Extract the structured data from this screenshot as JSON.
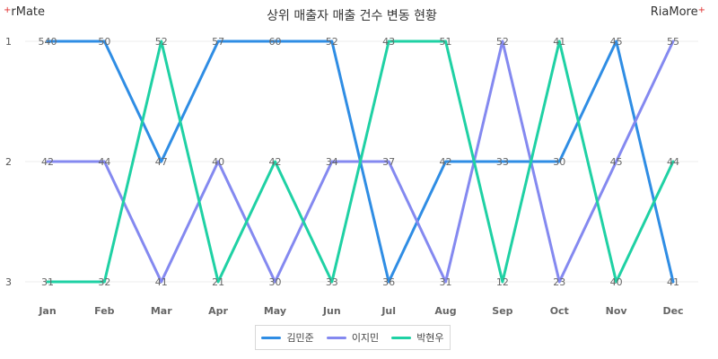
{
  "header": {
    "left_logo": "rMate",
    "right_logo": "RiaMore",
    "title": "상위 매출자 매출 건수 변동 현황"
  },
  "legend": [
    {
      "label": "김민준",
      "color": "#2f8de4"
    },
    {
      "label": "이지민",
      "color": "#8489f0"
    },
    {
      "label": "박현우",
      "color": "#1fd1a4"
    }
  ],
  "chart_data": {
    "type": "line",
    "title": "상위 매출자 매출 건수 변동 현황",
    "categories": [
      "Jan",
      "Feb",
      "Mar",
      "Apr",
      "May",
      "Jun",
      "Jul",
      "Aug",
      "Sep",
      "Oct",
      "Nov",
      "Dec"
    ],
    "y_ticks": [
      "1",
      "2",
      "3"
    ],
    "ylim": [
      1,
      3
    ],
    "y_inverted": true,
    "grid": true,
    "legend_position": "bottom",
    "series": [
      {
        "name": "김민준",
        "color": "#2f8de4",
        "ranks": [
          1,
          1,
          2,
          1,
          1,
          1,
          3,
          2,
          2,
          2,
          1,
          3
        ],
        "labels": [
          "540",
          "50",
          "47",
          "57",
          "60",
          "52",
          "36",
          "42",
          "33",
          "30",
          "45",
          "41"
        ]
      },
      {
        "name": "이지민",
        "color": "#8489f0",
        "ranks": [
          2,
          2,
          3,
          2,
          3,
          2,
          2,
          3,
          1,
          3,
          2,
          1
        ],
        "labels": [
          "42",
          "44",
          "41",
          "40",
          "30",
          "34",
          "37",
          "31",
          "52",
          "23",
          "45",
          "55"
        ]
      },
      {
        "name": "박현우",
        "color": "#1fd1a4",
        "ranks": [
          3,
          3,
          1,
          3,
          2,
          3,
          1,
          1,
          3,
          1,
          3,
          2
        ],
        "labels": [
          "31",
          "32",
          "52",
          "21",
          "42",
          "33",
          "43",
          "51",
          "12",
          "41",
          "40",
          "44"
        ]
      }
    ]
  }
}
